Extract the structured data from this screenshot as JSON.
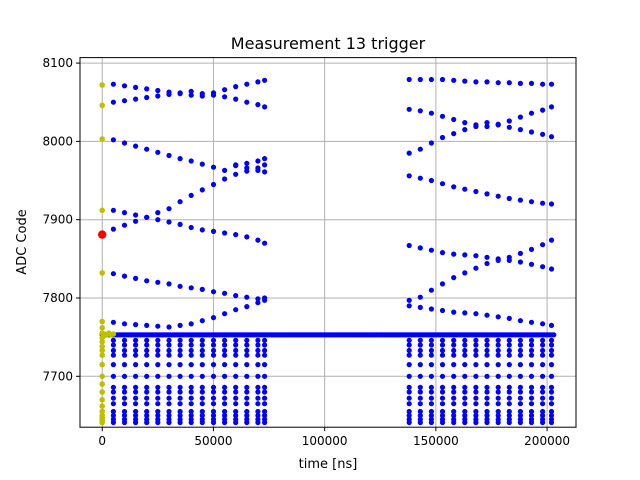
{
  "chart_data": {
    "type": "scatter",
    "title": "Measurement 13 trigger",
    "xlabel": "time [ns]",
    "ylabel": "ADC Code",
    "xlim": [
      -10000,
      213000
    ],
    "ylim": [
      7635,
      8107
    ],
    "xticks": [
      0,
      50000,
      100000,
      150000,
      200000
    ],
    "yticks": [
      7700,
      7800,
      7900,
      8000,
      8100
    ],
    "grid": true,
    "legend": "none",
    "series": [
      {
        "color": "#0000ff",
        "marker": "circle",
        "baseline": {
          "y": 7753,
          "x_start": 0,
          "x_end": 203000,
          "step": 700
        },
        "columns_x": {
          "left": [
            5000,
            10000,
            15000,
            20000,
            25000,
            30000,
            35000,
            40000,
            45000,
            50000,
            55000,
            60000,
            65000,
            70000,
            73000
          ],
          "right": [
            138000,
            143000,
            148000,
            153000,
            158000,
            163000,
            168000,
            173000,
            178000,
            183000,
            188000,
            193000,
            198000,
            202000
          ]
        },
        "column_levels": [
          7746,
          7740,
          7733,
          7727,
          7715,
          7700,
          7686,
          7680,
          7672,
          7665,
          7655,
          7650,
          7645,
          7641
        ],
        "lines": [
          {
            "x": [
              5000,
              10000,
              15000,
              20000,
              25000,
              30000,
              35000,
              40000,
              45000,
              50000,
              55000,
              60000,
              65000,
              70000,
              73000
            ],
            "y": [
              8073,
              8071,
              8069,
              8067,
              8065,
              8063,
              8061,
              8059,
              8058,
              8062,
              8066,
              8070,
              8073,
              8076,
              8078
            ]
          },
          {
            "x": [
              5000,
              10000,
              15000,
              20000,
              25000,
              30000,
              35000,
              40000,
              45000,
              50000,
              55000,
              60000,
              65000,
              70000,
              73000
            ],
            "y": [
              8050,
              8052,
              8054,
              8056,
              8058,
              8060,
              8062,
              8064,
              8061,
              8059,
              8057,
              8054,
              8050,
              8047,
              8044
            ]
          },
          {
            "x": [
              5000,
              10000,
              15000,
              20000,
              25000,
              30000,
              35000,
              40000,
              45000,
              50000,
              55000,
              60000,
              65000,
              70000,
              73000
            ],
            "y": [
              8002,
              7998,
              7994,
              7990,
              7986,
              7982,
              7978,
              7975,
              7971,
              7967,
              7963,
              7969,
              7972,
              7975,
              7978
            ]
          },
          {
            "x": [
              60000,
              65000,
              70000,
              73000
            ],
            "y": [
              7970,
              7966,
              7963,
              7961
            ]
          },
          {
            "x": [
              5000,
              10000,
              15000,
              20000,
              25000,
              30000,
              35000,
              40000,
              45000,
              50000,
              55000,
              60000,
              65000,
              70000,
              73000
            ],
            "y": [
              7912,
              7909,
              7906,
              7903,
              7900,
              7897,
              7894,
              7890,
              7887,
              7885,
              7883,
              7881,
              7878,
              7874,
              7870
            ]
          },
          {
            "x": [
              5000,
              10000,
              15000,
              20000,
              25000,
              30000,
              35000,
              40000,
              45000,
              50000,
              55000,
              60000,
              65000,
              70000,
              73000
            ],
            "y": [
              7888,
              7893,
              7898,
              7903,
              7909,
              7914,
              7923,
              7931,
              7938,
              7945,
              7952,
              7958,
              7962,
              7966,
              7970
            ]
          },
          {
            "x": [
              5000,
              10000,
              15000,
              20000,
              25000,
              30000,
              35000,
              40000,
              45000,
              50000,
              55000,
              60000,
              65000,
              70000,
              73000
            ],
            "y": [
              7831,
              7828,
              7825,
              7822,
              7820,
              7818,
              7815,
              7813,
              7811,
              7808,
              7806,
              7803,
              7801,
              7799,
              7797
            ]
          },
          {
            "x": [
              5000,
              10000,
              15000,
              20000,
              25000,
              30000,
              35000,
              40000,
              45000,
              50000,
              55000,
              60000,
              65000,
              70000,
              73000
            ],
            "y": [
              7769,
              7767,
              7766,
              7765,
              7764,
              7763,
              7765,
              7767,
              7771,
              7775,
              7780,
              7785,
              7789,
              7794,
              7800
            ]
          },
          {
            "x": [
              138000,
              143000,
              148000,
              153000,
              158000,
              163000,
              168000,
              173000,
              178000,
              183000,
              188000,
              193000,
              198000,
              202000
            ],
            "y": [
              8079,
              8079,
              8079,
              8079,
              8078,
              8077,
              8076,
              8076,
              8075,
              8075,
              8074,
              8074,
              8073,
              8073
            ]
          },
          {
            "x": [
              138000,
              143000,
              148000,
              153000,
              158000,
              163000,
              168000,
              173000,
              178000,
              183000,
              188000,
              193000,
              198000,
              202000
            ],
            "y": [
              8041,
              8039,
              8036,
              8032,
              8028,
              8024,
              8021,
              8019,
              8021,
              8026,
              8031,
              8036,
              8040,
              8044
            ]
          },
          {
            "x": [
              138000,
              143000,
              148000,
              153000,
              158000,
              163000,
              168000,
              173000,
              178000,
              183000,
              188000,
              193000,
              198000,
              202000
            ],
            "y": [
              7985,
              7990,
              7998,
              8005,
              8010,
              8015,
              8019,
              8024,
              8022,
              8018,
              8015,
              8012,
              8009,
              8006
            ]
          },
          {
            "x": [
              138000,
              143000,
              148000,
              153000,
              158000,
              163000,
              168000,
              173000,
              178000,
              183000,
              188000,
              193000,
              198000,
              202000
            ],
            "y": [
              7956,
              7953,
              7950,
              7946,
              7942,
              7939,
              7936,
              7933,
              7930,
              7927,
              7925,
              7923,
              7921,
              7920
            ]
          },
          {
            "x": [
              138000,
              143000,
              148000,
              153000,
              158000,
              163000,
              168000,
              173000,
              178000,
              183000,
              188000,
              193000,
              198000,
              202000
            ],
            "y": [
              7867,
              7864,
              7861,
              7858,
              7856,
              7855,
              7854,
              7852,
              7850,
              7848,
              7846,
              7843,
              7840,
              7837
            ]
          },
          {
            "x": [
              138000,
              143000,
              148000,
              153000,
              158000,
              163000,
              168000,
              173000,
              178000,
              183000,
              188000,
              193000,
              198000,
              202000
            ],
            "y": [
              7797,
              7801,
              7810,
              7818,
              7826,
              7832,
              7838,
              7844,
              7848,
              7852,
              7857,
              7862,
              7868,
              7874
            ]
          },
          {
            "x": [
              138000,
              143000,
              148000,
              153000,
              158000,
              163000,
              168000,
              173000,
              178000,
              183000,
              188000,
              193000,
              198000,
              202000
            ],
            "y": [
              7790,
              7788,
              7786,
              7784,
              7782,
              7781,
              7780,
              7778,
              7776,
              7774,
              7771,
              7769,
              7767,
              7765
            ]
          }
        ]
      },
      {
        "color": "#bfbf00",
        "marker": "circle",
        "points": [
          [
            0,
            8072
          ],
          [
            0,
            8046
          ],
          [
            0,
            8003
          ],
          [
            0,
            7912
          ],
          [
            0,
            7832
          ],
          [
            0,
            7770
          ],
          [
            0,
            7762
          ],
          [
            0,
            7755
          ],
          [
            500,
            7753
          ],
          [
            1000,
            7754
          ],
          [
            2000,
            7753
          ],
          [
            3000,
            7755
          ],
          [
            4000,
            7753
          ],
          [
            5000,
            7754
          ],
          [
            0,
            7749
          ],
          [
            0,
            7744
          ],
          [
            0,
            7738
          ],
          [
            0,
            7733
          ],
          [
            0,
            7727
          ],
          [
            0,
            7715
          ],
          [
            0,
            7700
          ],
          [
            0,
            7690
          ],
          [
            0,
            7680
          ],
          [
            0,
            7670
          ],
          [
            0,
            7662
          ],
          [
            0,
            7655
          ],
          [
            0,
            7650
          ],
          [
            0,
            7647
          ],
          [
            0,
            7645
          ],
          [
            0,
            7643
          ],
          [
            0,
            7641
          ]
        ]
      },
      {
        "color": "#ff0000",
        "marker": "circle",
        "points": [
          [
            0,
            7881
          ]
        ]
      }
    ]
  }
}
